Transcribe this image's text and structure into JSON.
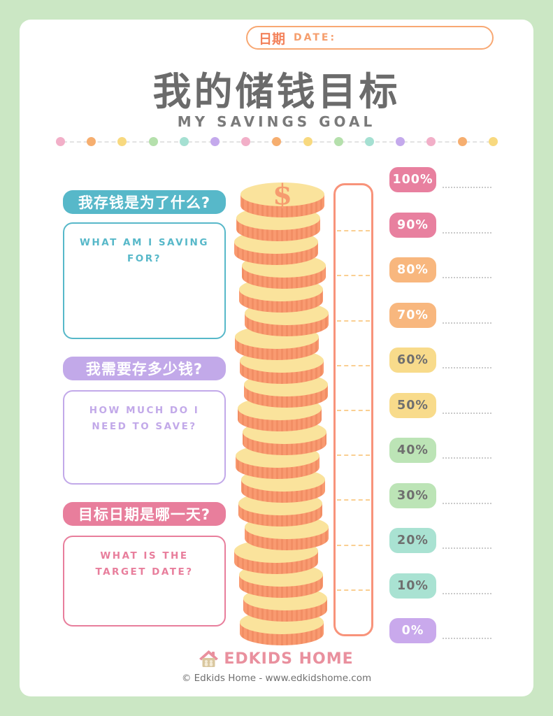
{
  "date_bar": {
    "label_cn": "日期",
    "label_en": "DATE:"
  },
  "header": {
    "title_cn": "我的储钱目标",
    "title_en": "MY SAVINGS GOAL"
  },
  "divider": {
    "dot_colors": [
      "#F2AFC8",
      "#F6AE6F",
      "#F8D97F",
      "#B5E0AC",
      "#A5E0D2",
      "#C4A9EC",
      "#F2AFC8",
      "#F6AE6F",
      "#F8D97F",
      "#B5E0AC",
      "#A5E0D2",
      "#C4A9EC",
      "#F2AFC8",
      "#F6AE6F",
      "#F8D97F"
    ]
  },
  "sections": [
    {
      "heading": "我存钱是为了什么?",
      "prompt": "WHAT AM I SAVING FOR?",
      "accent": "#57B8C9"
    },
    {
      "heading": "我需要存多少钱?",
      "prompt": "HOW MUCH DO I NEED TO SAVE?",
      "accent": "#C2A9E9"
    },
    {
      "heading": "目标日期是哪一天?",
      "prompt": "WHAT IS THE TARGET DATE?",
      "accent": "#E87E9C"
    }
  ],
  "tracker": {
    "segments": 10,
    "coin_symbol": "$",
    "levels": [
      {
        "label": "100%",
        "bg": "#E8809F",
        "fg": "#FFFFFF"
      },
      {
        "label": "90%",
        "bg": "#E8809F",
        "fg": "#FFFFFF"
      },
      {
        "label": "80%",
        "bg": "#F8B77E",
        "fg": "#FFFFFF"
      },
      {
        "label": "70%",
        "bg": "#F8B77E",
        "fg": "#FFFFFF"
      },
      {
        "label": "60%",
        "bg": "#F8DB8B",
        "fg": "#6F6F6F"
      },
      {
        "label": "50%",
        "bg": "#F8DB8B",
        "fg": "#6F6F6F"
      },
      {
        "label": "40%",
        "bg": "#BCE4B6",
        "fg": "#6F6F6F"
      },
      {
        "label": "30%",
        "bg": "#BCE4B6",
        "fg": "#6F6F6F"
      },
      {
        "label": "20%",
        "bg": "#A9E2D2",
        "fg": "#6F6F6F"
      },
      {
        "label": "10%",
        "bg": "#A9E2D2",
        "fg": "#6F6F6F"
      },
      {
        "label": "0%",
        "bg": "#C9A9EC",
        "fg": "#FFFFFF"
      }
    ]
  },
  "footer": {
    "brand": "EDKIDS HOME",
    "copyright": "© Edkids Home - www.edkidshome.com"
  },
  "colors": {
    "page_bg": "#CBE7C4",
    "paper": "#FFFFFF",
    "date_border": "#F8A873",
    "title": "#6B6B6B",
    "subtitle": "#7A7A7A",
    "thermometer_border": "#F8937A",
    "thermometer_segment": "#FACF92",
    "write_line": "#C9C9C9",
    "coin_top": "#FAE39C",
    "coin_side": "#F99A70",
    "coin_ridge": "#F28E64",
    "coin_symbol_color": "#F69C6F",
    "brand_pink": "#E9909E",
    "house_tan": "#D9C79F"
  }
}
